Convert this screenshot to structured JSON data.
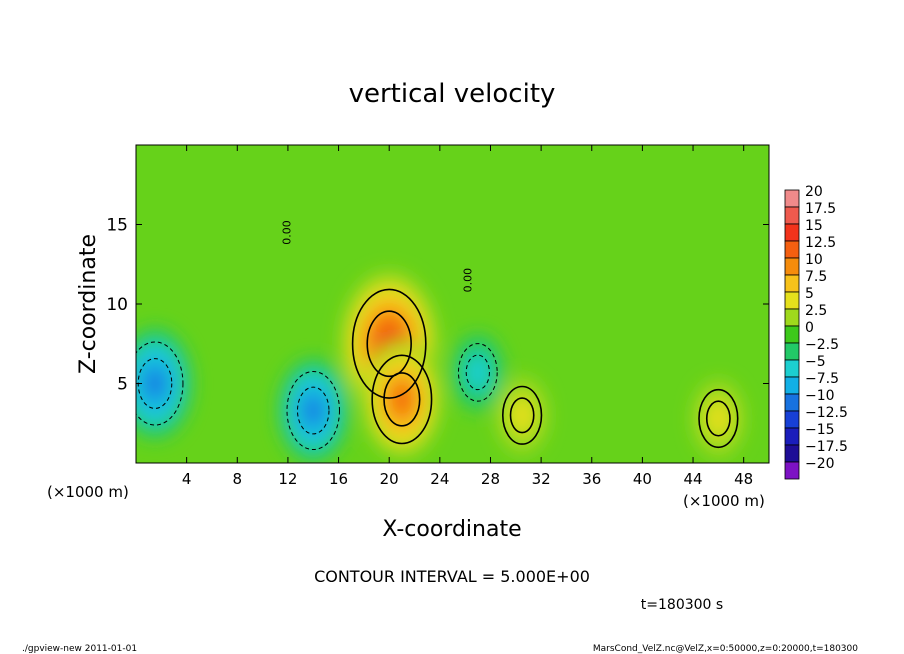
{
  "chart_data": {
    "type": "heatmap",
    "title": "vertical velocity",
    "xlabel": "X-coordinate",
    "ylabel": "Z-coordinate",
    "x_unit_left": "(×1000 m)",
    "x_unit_right": "(×1000 m)",
    "xlim": [
      0,
      50
    ],
    "ylim": [
      0,
      20
    ],
    "x_ticks": [
      "4",
      "8",
      "12",
      "16",
      "20",
      "24",
      "28",
      "32",
      "36",
      "40",
      "44",
      "48"
    ],
    "x_tick_values": [
      4,
      8,
      12,
      16,
      20,
      24,
      28,
      32,
      36,
      40,
      44,
      48
    ],
    "y_ticks": [
      "5",
      "10",
      "15"
    ],
    "y_tick_values": [
      5,
      10,
      15
    ],
    "contour_label": "0.00",
    "contour_interval_text": "CONTOUR INTERVAL = 5.000E+00",
    "time_text": "t=180300 s",
    "colorbar": {
      "labels": [
        "20",
        "17.5",
        "15",
        "12.5",
        "10",
        "7.5",
        "5",
        "2.5",
        "0",
        "-2.5",
        "-5",
        "-7.5",
        "-10",
        "-12.5",
        "-15",
        "-17.5",
        "-20"
      ],
      "colors": [
        "#f08a8a",
        "#ef5a4e",
        "#f2331b",
        "#f45f10",
        "#f58c0c",
        "#f7c21a",
        "#e5e01c",
        "#9fd91c",
        "#3dc91a",
        "#22c967",
        "#1ccfd0",
        "#12b0e6",
        "#1772e0",
        "#1740d6",
        "#1a1dbb",
        "#1e0d96",
        "#7d12c4"
      ]
    },
    "features": [
      {
        "kind": "updraft",
        "x": 20,
        "z": 7.5,
        "peak": 16
      },
      {
        "kind": "updraft",
        "x": 21,
        "z": 4.0,
        "peak": 12
      },
      {
        "kind": "updraft",
        "x": 30.5,
        "z": 3.0,
        "peak": 6
      },
      {
        "kind": "updraft",
        "x": 46,
        "z": 2.8,
        "peak": 6
      },
      {
        "kind": "downdraft",
        "x": 1.5,
        "z": 5.0,
        "peak": -11
      },
      {
        "kind": "downdraft",
        "x": 14,
        "z": 3.3,
        "peak": -10
      },
      {
        "kind": "downdraft",
        "x": 27,
        "z": 5.7,
        "peak": -6
      }
    ]
  },
  "footer": {
    "left": "./gpview-new  2011-01-01",
    "right": "MarsCond_VelZ.nc@VelZ,x=0:50000,z=0:20000,t=180300"
  }
}
